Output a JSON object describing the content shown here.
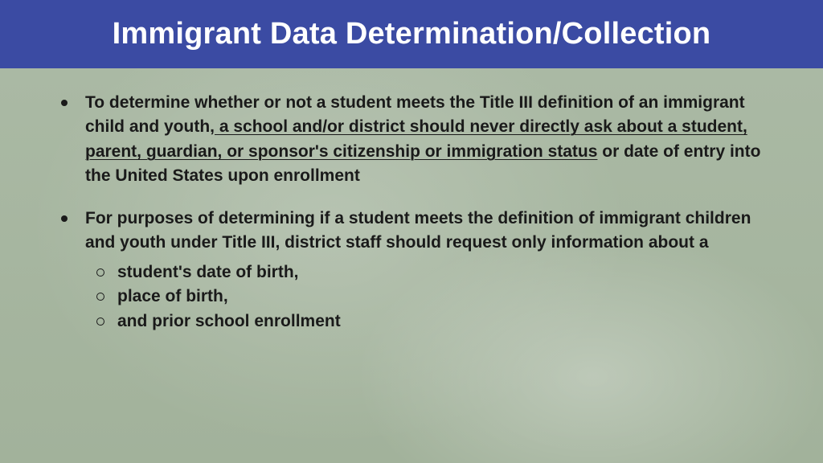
{
  "header": {
    "title": "Immigrant Data Determination/Collection",
    "bg_color": "#3b4ba3",
    "text_color": "#ffffff",
    "title_fontsize": 38,
    "title_fontweight": 700
  },
  "body": {
    "bg_base_color": "#a9baa3",
    "text_color": "#1a1a1a",
    "fontsize": 21,
    "fontweight": 600
  },
  "bullets": [
    {
      "pre": "To determine whether or not a student meets the Title III definition of an immigrant child and youth,",
      "underlined": " a school and/or district should never directly ask about a student, parent, guardian, or sponsor's citizenship or immigration status",
      "post": " or date of entry into the United States upon enrollment"
    },
    {
      "pre": "For purposes of determining if a student meets the definition of immigrant children and youth under Title III, district staff should request only information about a",
      "underlined": "",
      "post": "",
      "sub": [
        "student's date of birth,",
        "place of birth,",
        "and prior school enrollment"
      ]
    }
  ]
}
